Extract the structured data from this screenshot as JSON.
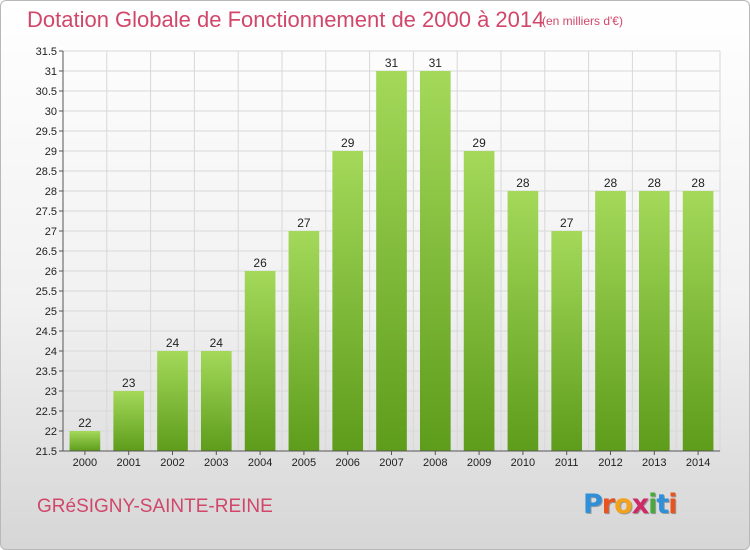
{
  "header": {
    "title": "Dotation Globale de Fonctionnement de 2000 à 2014",
    "subtitle": "(en milliers d'€)"
  },
  "footer": {
    "city": "GRéSIGNY-SAINTE-REINE",
    "logo_letters": [
      "P",
      "r",
      "o",
      "x",
      "i",
      "t",
      "i"
    ],
    "logo_colors": [
      "#2f8fd8",
      "#e8531f",
      "#f3a21b",
      "#d02a66",
      "#4aa83c",
      "#2f8fd8",
      "#e8531f"
    ]
  },
  "colors": {
    "bar_top": "#a4d95a",
    "bar_bottom": "#5e9c1b",
    "grid": "#d8d8d8",
    "axis": "#555555"
  },
  "chart_data": {
    "type": "bar",
    "categories": [
      "2000",
      "2001",
      "2002",
      "2003",
      "2004",
      "2005",
      "2006",
      "2007",
      "2008",
      "2009",
      "2010",
      "2011",
      "2012",
      "2013",
      "2014"
    ],
    "values": [
      22,
      23,
      24,
      24,
      26,
      27,
      29,
      31,
      31,
      29,
      28,
      27,
      28,
      28,
      28
    ],
    "value_labels": [
      "22",
      "23",
      "24",
      "24",
      "26",
      "27",
      "29",
      "31",
      "31",
      "29",
      "28",
      "27",
      "28",
      "28",
      "28"
    ],
    "ylim": [
      21.5,
      31.5
    ],
    "yticks": [
      "21.5",
      "22",
      "22.5",
      "23",
      "23.5",
      "24",
      "24.5",
      "25",
      "25.5",
      "26",
      "26.5",
      "27",
      "27.5",
      "28",
      "28.5",
      "29",
      "29.5",
      "30",
      "30.5",
      "31",
      "31.5"
    ],
    "grid": true
  }
}
